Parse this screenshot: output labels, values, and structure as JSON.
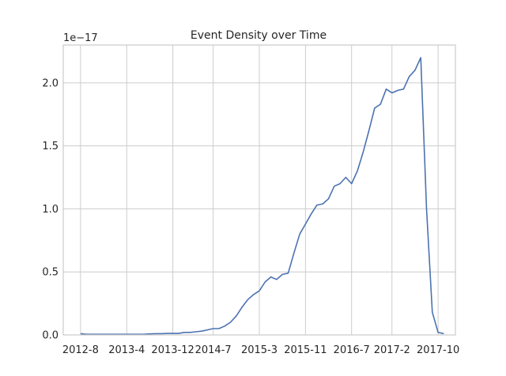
{
  "chart_data": {
    "type": "line",
    "title": "Event Density over Time",
    "xlabel": "",
    "ylabel": "",
    "y_offset_label": "1e−17",
    "y_scale": 1e-17,
    "x_ticks": [
      "2012-8",
      "2013-4",
      "2013-12",
      "2014-7",
      "2015-3",
      "2015-11",
      "2016-7",
      "2017-2",
      "2017-10"
    ],
    "y_ticks": [
      "0.0",
      "0.5",
      "1.0",
      "1.5",
      "2.0"
    ],
    "ylim": [
      0,
      2.3
    ],
    "xlim": [
      "2012-05",
      "2018-01"
    ],
    "grid": true,
    "series": [
      {
        "color": "#4c72b0",
        "x": [
          "2012-08",
          "2012-09",
          "2012-10",
          "2012-11",
          "2012-12",
          "2013-01",
          "2013-02",
          "2013-03",
          "2013-04",
          "2013-05",
          "2013-06",
          "2013-07",
          "2013-08",
          "2013-09",
          "2013-10",
          "2013-11",
          "2013-12",
          "2014-01",
          "2014-02",
          "2014-03",
          "2014-04",
          "2014-05",
          "2014-06",
          "2014-07",
          "2014-08",
          "2014-09",
          "2014-10",
          "2014-11",
          "2014-12",
          "2015-01",
          "2015-02",
          "2015-03",
          "2015-04",
          "2015-05",
          "2015-06",
          "2015-07",
          "2015-08",
          "2015-09",
          "2015-10",
          "2015-11",
          "2015-12",
          "2016-01",
          "2016-02",
          "2016-03",
          "2016-04",
          "2016-05",
          "2016-06",
          "2016-07",
          "2016-08",
          "2016-09",
          "2016-10",
          "2016-11",
          "2016-12",
          "2017-01",
          "2017-02",
          "2017-03",
          "2017-04",
          "2017-05",
          "2017-06",
          "2017-07",
          "2017-08",
          "2017-09",
          "2017-10",
          "2017-11"
        ],
        "values": [
          0.01,
          0.005,
          0.005,
          0.005,
          0.005,
          0.005,
          0.005,
          0.005,
          0.005,
          0.005,
          0.005,
          0.005,
          0.008,
          0.01,
          0.01,
          0.012,
          0.012,
          0.012,
          0.02,
          0.02,
          0.025,
          0.03,
          0.04,
          0.05,
          0.05,
          0.07,
          0.1,
          0.15,
          0.22,
          0.28,
          0.32,
          0.35,
          0.42,
          0.46,
          0.44,
          0.48,
          0.49,
          0.65,
          0.8,
          0.88,
          0.96,
          1.03,
          1.04,
          1.08,
          1.18,
          1.2,
          1.25,
          1.2,
          1.3,
          1.45,
          1.62,
          1.8,
          1.83,
          1.95,
          1.92,
          1.94,
          1.95,
          2.05,
          2.1,
          2.2,
          1.0,
          0.18,
          0.02,
          0.01
        ]
      }
    ]
  }
}
